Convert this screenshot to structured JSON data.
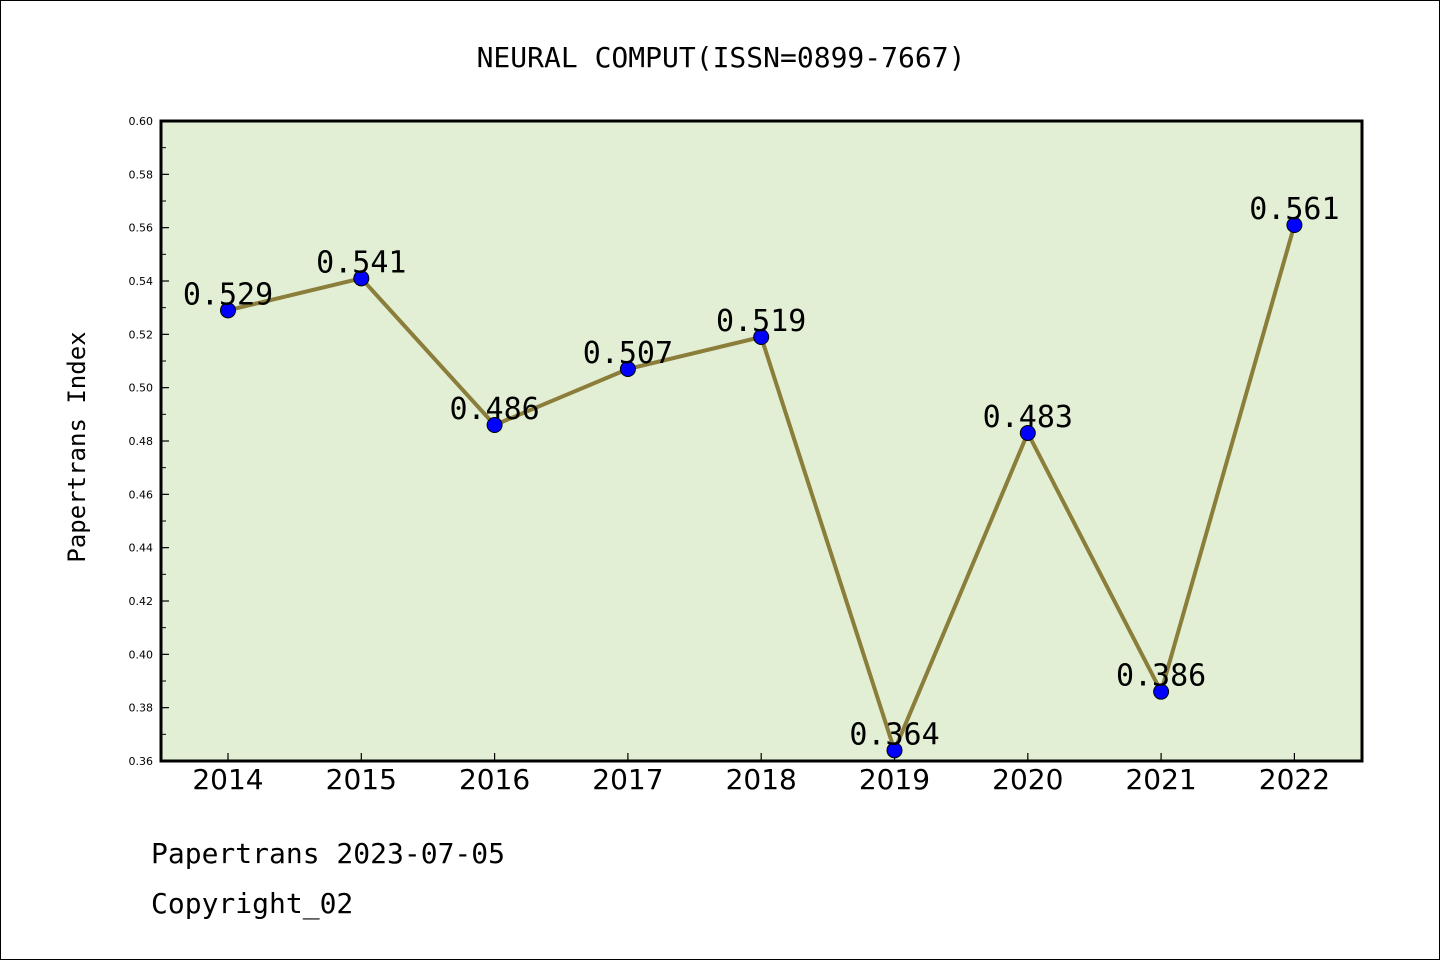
{
  "chart_data": {
    "type": "line",
    "title": "NEURAL COMPUT(ISSN=0899-7667)",
    "xlabel": "",
    "ylabel": "Papertrans Index",
    "categories": [
      "2014",
      "2015",
      "2016",
      "2017",
      "2018",
      "2019",
      "2020",
      "2021",
      "2022"
    ],
    "values": [
      0.529,
      0.541,
      0.486,
      0.507,
      0.519,
      0.364,
      0.483,
      0.386,
      0.561
    ],
    "data_labels": [
      "0.529",
      "0.541",
      "0.486",
      "0.507",
      "0.519",
      "0.364",
      "0.483",
      "0.386",
      "0.561"
    ],
    "ylim": [
      0.36,
      0.6
    ],
    "yticks": [
      "0.36",
      "0.38",
      "0.40",
      "0.42",
      "0.44",
      "0.46",
      "0.48",
      "0.50",
      "0.52",
      "0.54",
      "0.56",
      "0.58",
      "0.60"
    ],
    "grid": false,
    "colors": {
      "plot_background": "#e2efd5",
      "line": "#8b7d3a",
      "marker": "#0000ff"
    }
  },
  "footer": {
    "line1": "Papertrans 2023-07-05",
    "line2": "Copyright_02"
  }
}
